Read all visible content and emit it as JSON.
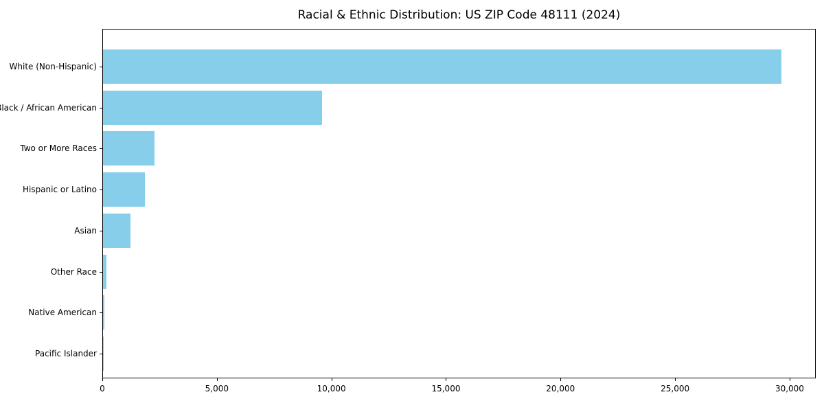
{
  "chart_data": {
    "type": "bar",
    "orientation": "horizontal",
    "title": "Racial & Ethnic Distribution: US ZIP Code 48111 (2024)",
    "categories": [
      "White (Non-Hispanic)",
      "Black / African American",
      "Two or More Races",
      "Hispanic or Latino",
      "Asian",
      "Other Race",
      "Native American",
      "Pacific Islander"
    ],
    "values": [
      29600,
      9560,
      2250,
      1830,
      1200,
      150,
      70,
      10
    ],
    "xlabel": "",
    "ylabel": "",
    "xlim": [
      0,
      31140
    ],
    "xticks": {
      "values": [
        0,
        5000,
        10000,
        15000,
        20000,
        25000,
        30000
      ],
      "labels": [
        "0",
        "5,000",
        "10,000",
        "15,000",
        "20,000",
        "25,000",
        "30,000"
      ]
    },
    "grid": false,
    "legend": null,
    "colors": {
      "bar": "#87CEEB",
      "text": "#000000",
      "axis": "#000000",
      "background": "#FFFFFF"
    }
  }
}
